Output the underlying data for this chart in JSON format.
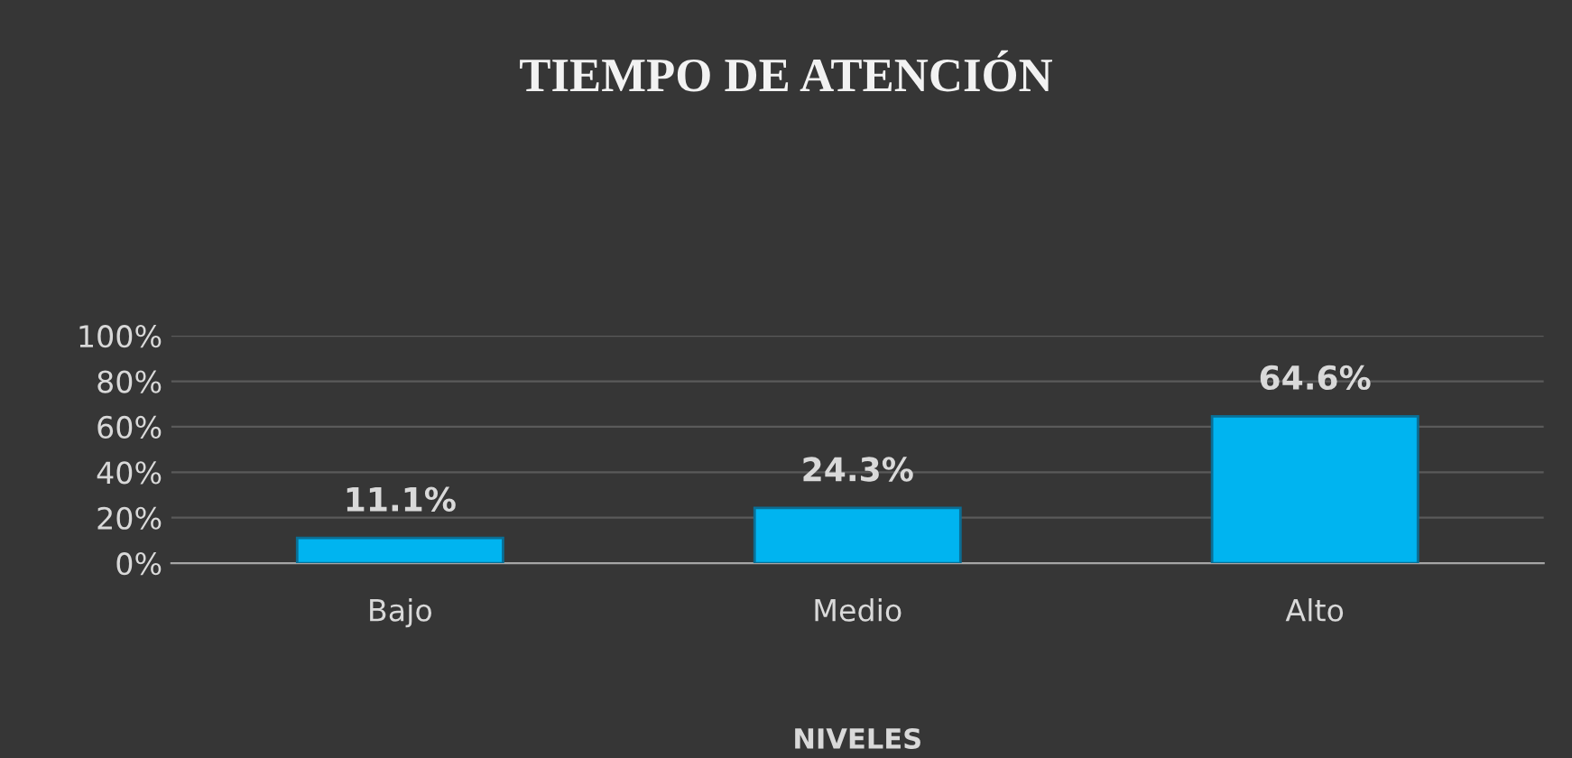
{
  "chart_data": {
    "type": "bar",
    "title": "TIEMPO DE ATENCIÓN",
    "xlabel": "NIVELES",
    "categories": [
      "Bajo",
      "Medio",
      "Alto"
    ],
    "values": [
      11.1,
      24.3,
      64.6
    ],
    "value_labels": [
      "11.1%",
      "24.3%",
      "64.6%"
    ],
    "color": "#00b4f0",
    "ylim": [
      0,
      100
    ],
    "yticks": [
      {
        "value": 0,
        "label": "0%"
      },
      {
        "value": 20,
        "label": "20%"
      },
      {
        "value": 40,
        "label": "40%"
      },
      {
        "value": 60,
        "label": "60%"
      },
      {
        "value": 80,
        "label": "80%"
      },
      {
        "value": 100,
        "label": "100%"
      }
    ],
    "grid": "y",
    "legend": false
  }
}
